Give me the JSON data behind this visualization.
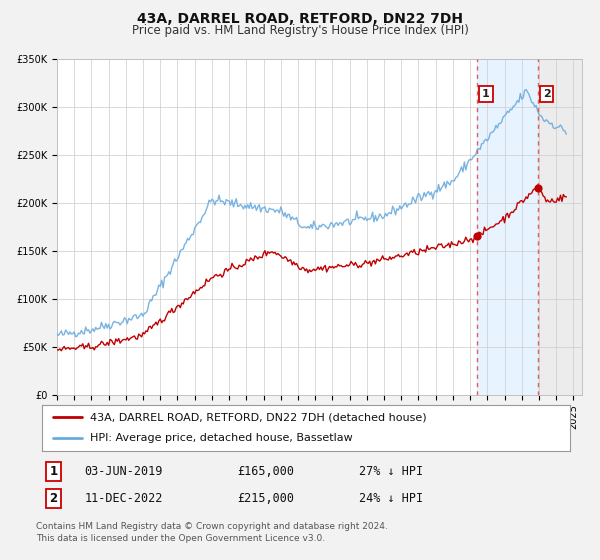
{
  "title": "43A, DARREL ROAD, RETFORD, DN22 7DH",
  "subtitle": "Price paid vs. HM Land Registry's House Price Index (HPI)",
  "ylim": [
    0,
    350000
  ],
  "xlim_start": 1995.0,
  "xlim_end": 2025.5,
  "yticks": [
    0,
    50000,
    100000,
    150000,
    200000,
    250000,
    300000,
    350000
  ],
  "ytick_labels": [
    "£0",
    "£50K",
    "£100K",
    "£150K",
    "£200K",
    "£250K",
    "£300K",
    "£350K"
  ],
  "xticks": [
    1995,
    1996,
    1997,
    1998,
    1999,
    2000,
    2001,
    2002,
    2003,
    2004,
    2005,
    2006,
    2007,
    2008,
    2009,
    2010,
    2011,
    2012,
    2013,
    2014,
    2015,
    2016,
    2017,
    2018,
    2019,
    2020,
    2021,
    2022,
    2023,
    2024,
    2025
  ],
  "hpi_color": "#6aabde",
  "price_color": "#c00000",
  "dot_color": "#c00000",
  "vline_color": "#e06060",
  "annotation_border": "#cc0000",
  "shade_color": "#ddeeff",
  "legend_label_property": "43A, DARREL ROAD, RETFORD, DN22 7DH (detached house)",
  "legend_label_hpi": "HPI: Average price, detached house, Bassetlaw",
  "transaction1_date": "03-JUN-2019",
  "transaction1_price": "£165,000",
  "transaction1_pct": "27% ↓ HPI",
  "transaction1_year": 2019.42,
  "transaction1_value": 165000,
  "transaction2_date": "11-DEC-2022",
  "transaction2_price": "£215,000",
  "transaction2_pct": "24% ↓ HPI",
  "transaction2_year": 2022.95,
  "transaction2_value": 215000,
  "footer": "Contains HM Land Registry data © Crown copyright and database right 2024.\nThis data is licensed under the Open Government Licence v3.0.",
  "background_color": "#f2f2f2",
  "plot_bg_color": "#ffffff",
  "grid_color": "#cccccc",
  "title_fontsize": 10,
  "subtitle_fontsize": 8.5,
  "tick_fontsize": 7,
  "legend_fontsize": 8,
  "footer_fontsize": 6.5
}
